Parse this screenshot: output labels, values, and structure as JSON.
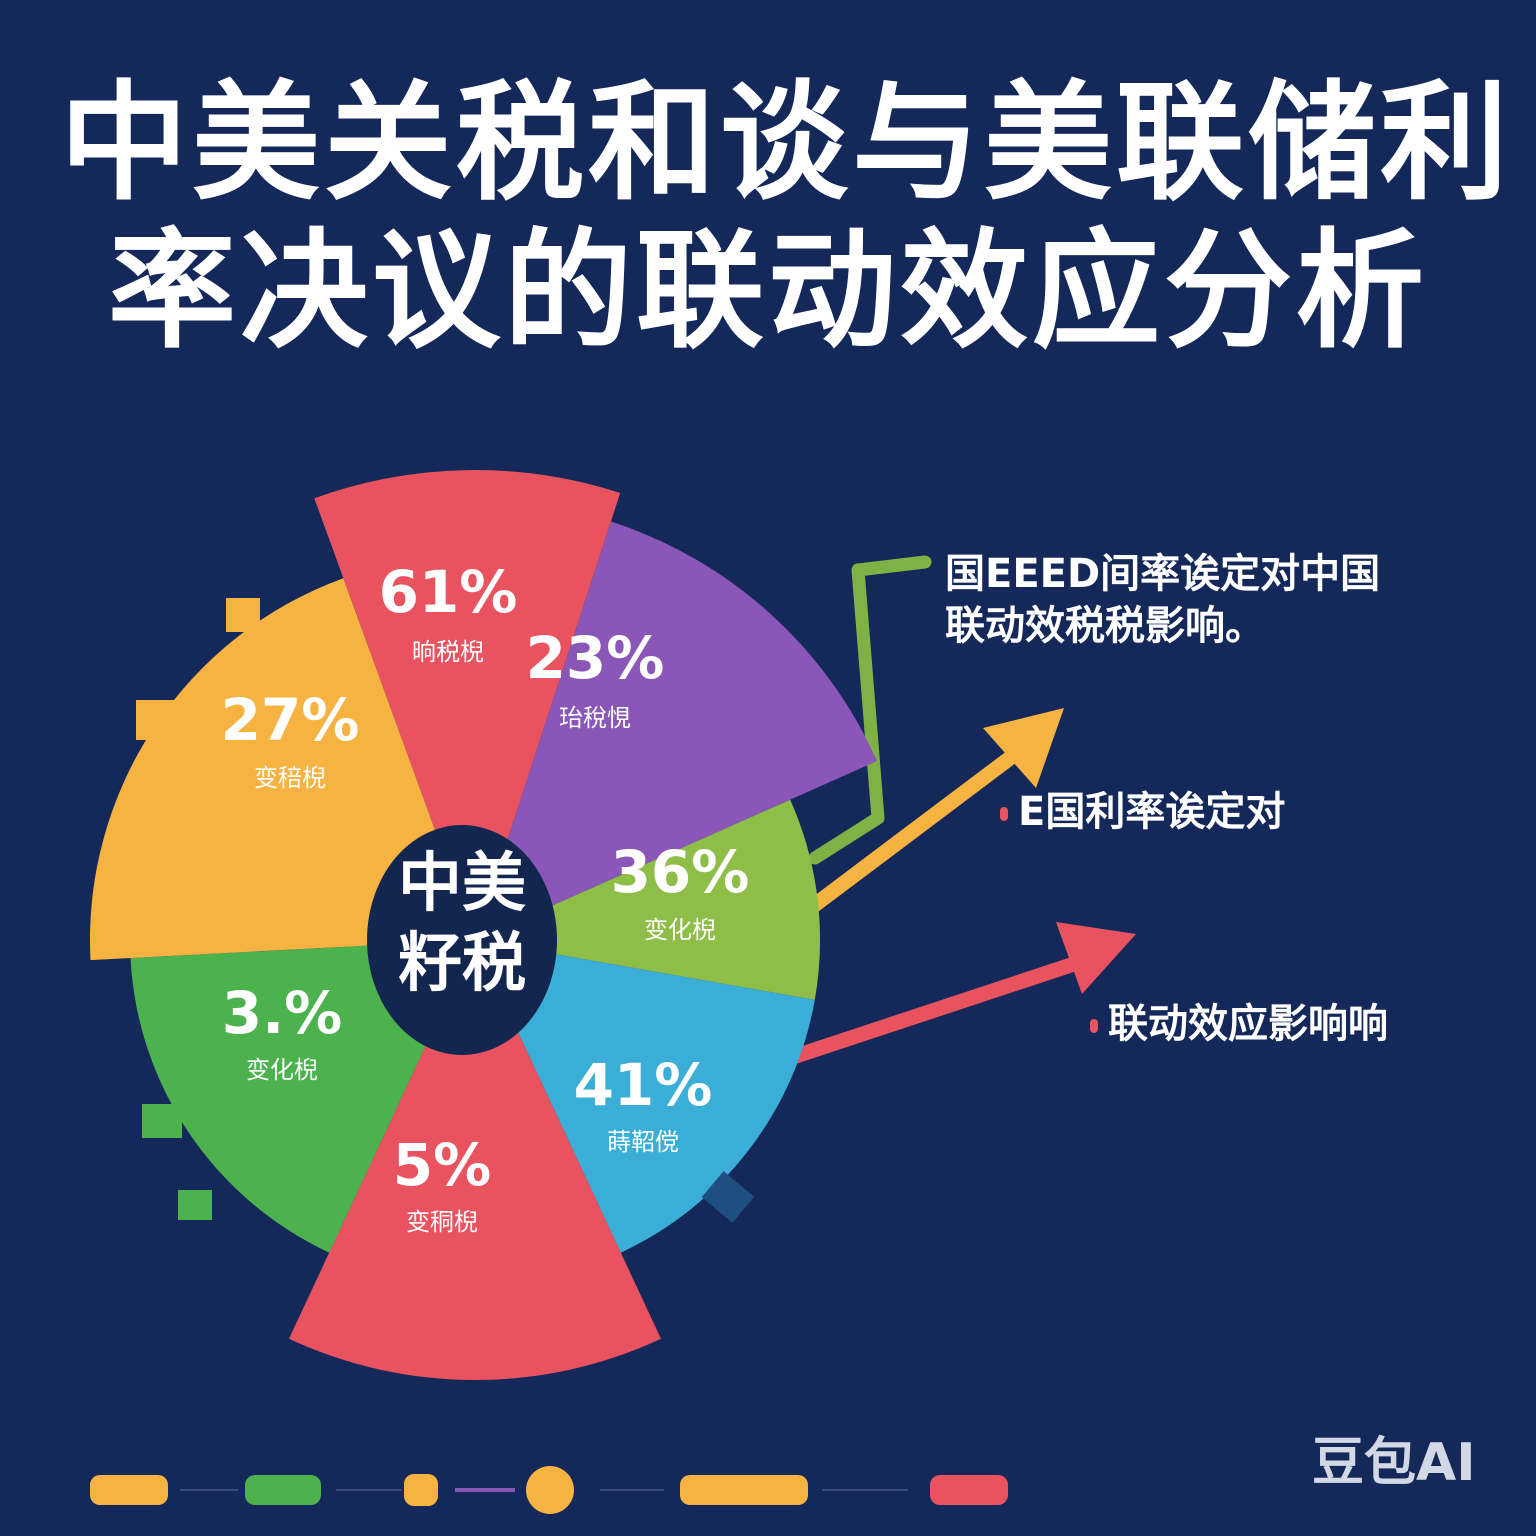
{
  "title": {
    "line1": "中美关税和谈与美联储利",
    "line2": "率决议的联动效应分析"
  },
  "center_label": {
    "line1": "中美",
    "line2": "籽税"
  },
  "annotations": [
    {
      "line1": "国EEED间率诶定对中国",
      "line2": "联动效税税影响。"
    },
    {
      "text": "E国利率诶定对"
    },
    {
      "text": "联动效应影响响"
    }
  ],
  "watermark": "豆包AI",
  "colors": {
    "background": "#14285a",
    "red": "#e8535f",
    "purple": "#8a56b8",
    "yellow_green": "#8ebd48",
    "blue": "#3aaed6",
    "green": "#4cb24e",
    "orange": "#f7b342",
    "center": "#13264f",
    "arrow_green": "#7fb244"
  },
  "chart_data": {
    "type": "pie",
    "title": "中美关税和谈与美联储利率决议的联动效应分析",
    "slices": [
      {
        "value": "61%",
        "label": "晌税棿",
        "color": "#e8535f"
      },
      {
        "value": "23%",
        "label": "珆稅悓",
        "color": "#8a56b8"
      },
      {
        "value": "36%",
        "label": "变化棿",
        "color": "#8ebd48"
      },
      {
        "value": "41%",
        "label": "蒔鞀傥",
        "color": "#3aaed6"
      },
      {
        "value": "5%",
        "label": "变秱棿",
        "color": "#e8535f"
      },
      {
        "value": "3.%",
        "label": "变化棿",
        "color": "#4cb24e"
      },
      {
        "value": "27%",
        "label": "变稖棿",
        "color": "#f7b342"
      }
    ]
  },
  "legend_bar": [
    {
      "color": "#f7b342",
      "shape": "pill"
    },
    {
      "color": "#4cb24e",
      "shape": "pill"
    },
    {
      "color": "#f7b342",
      "shape": "small"
    },
    {
      "color": "#f7b342",
      "shape": "circle"
    },
    {
      "color": "#f7b342",
      "shape": "pill-long"
    },
    {
      "color": "#e8535f",
      "shape": "pill"
    }
  ]
}
